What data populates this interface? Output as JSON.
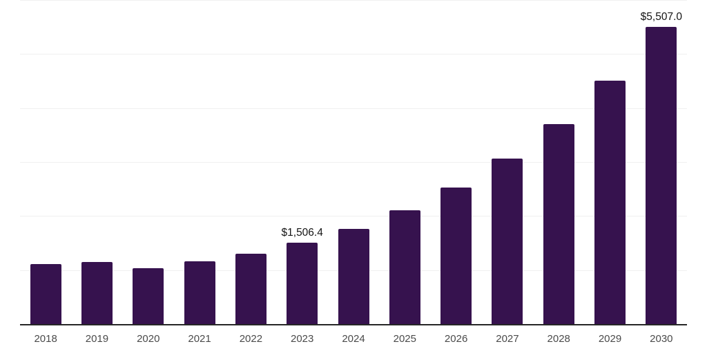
{
  "chart_data": {
    "type": "bar",
    "title": "",
    "categories": [
      "2018",
      "2019",
      "2020",
      "2021",
      "2022",
      "2023",
      "2024",
      "2025",
      "2026",
      "2027",
      "2028",
      "2029",
      "2030"
    ],
    "values": [
      1115,
      1148,
      1029,
      1157,
      1306,
      1506.4,
      1760,
      2105,
      2528,
      3068,
      3700,
      4503,
      5507.0
    ],
    "data_labels": [
      null,
      null,
      null,
      null,
      null,
      "$1,506.4",
      null,
      null,
      null,
      null,
      null,
      null,
      "$5,507.0"
    ],
    "xlabel": "",
    "ylabel": "",
    "ylim": [
      0,
      6000
    ],
    "gridline_interval": 1000,
    "grid": true,
    "legend": false,
    "value_prefix": "$",
    "colors": {
      "bar": "#36124E",
      "gridline": "#F0F0F0",
      "axis_line": "#262626",
      "tick_label": "#4A4A4A",
      "data_label": "#141414",
      "background": "#FFFFFF"
    }
  }
}
